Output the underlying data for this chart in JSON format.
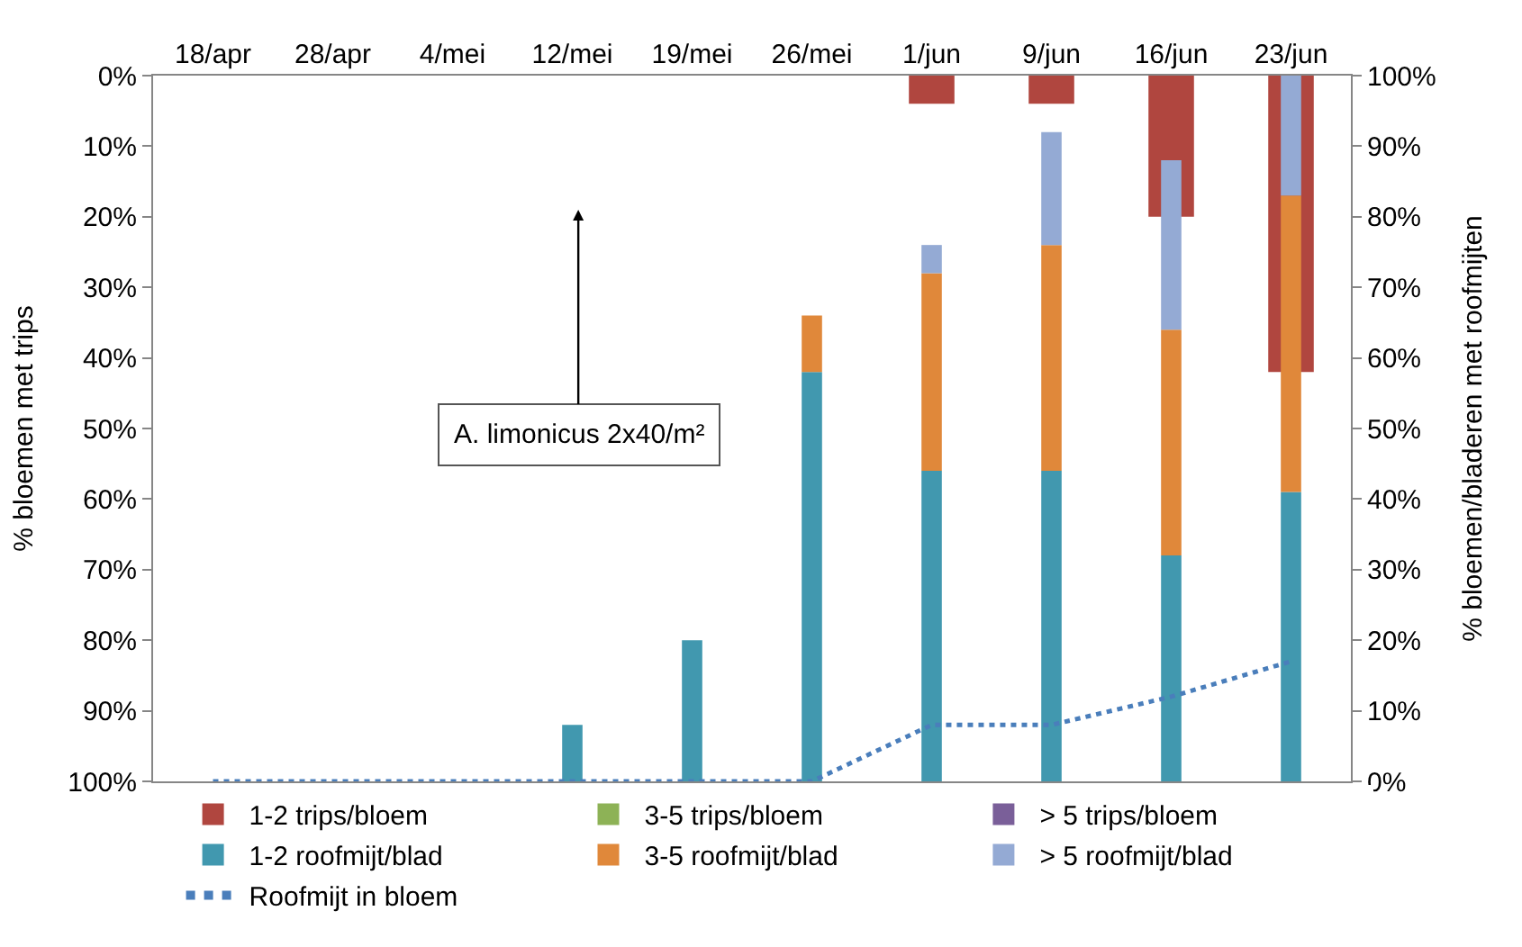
{
  "chart_data": {
    "type": "bar",
    "stacked": true,
    "ylabel": "% bloemen met trips",
    "y2label": "% bloemen/bladeren met roofmijten",
    "categories": [
      "18/apr",
      "28/apr",
      "4/mei",
      "12/mei",
      "19/mei",
      "26/mei",
      "1/jun",
      "9/jun",
      "16/jun",
      "23/jun"
    ],
    "series": [
      {
        "name": "1-2 trips/bloem",
        "color": "#b0463f",
        "axis": "y",
        "values": [
          null,
          null,
          null,
          null,
          null,
          null,
          4,
          4,
          20,
          42
        ]
      },
      {
        "name": "3-5 trips/bloem",
        "color": "#8db256",
        "axis": "y",
        "values": [
          null,
          null,
          null,
          null,
          null,
          null,
          null,
          null,
          null,
          null
        ]
      },
      {
        "name": "> 5 trips/bloem",
        "color": "#7a5f99",
        "axis": "y",
        "values": [
          null,
          null,
          null,
          null,
          null,
          null,
          null,
          null,
          null,
          null
        ]
      },
      {
        "name": "1-2 roofmijt/blad",
        "color": "#4198af",
        "axis": "y2",
        "values": [
          null,
          null,
          null,
          8,
          20,
          58,
          44,
          44,
          32,
          41
        ]
      },
      {
        "name": "3-5 roofmijt/blad",
        "color": "#e0883a",
        "axis": "y2",
        "values": [
          null,
          null,
          null,
          null,
          null,
          8,
          28,
          32,
          32,
          42
        ]
      },
      {
        "name": "> 5 roofmijt/blad",
        "color": "#94aad4",
        "axis": "y2",
        "values": [
          null,
          null,
          null,
          null,
          null,
          null,
          4,
          16,
          24,
          17
        ]
      },
      {
        "name": "Roofmijt in bloem",
        "color": "#4a7ebb",
        "axis": "y2",
        "type": "line",
        "line_style": "dotted",
        "marker": "none",
        "values": [
          0,
          0,
          0,
          0,
          0,
          0,
          8,
          8,
          12,
          17
        ]
      }
    ],
    "ylim": [
      100,
      0
    ],
    "yticks": [
      {
        "value": 0,
        "label": "0%"
      },
      {
        "value": 10,
        "label": "10%"
      },
      {
        "value": 20,
        "label": "20%"
      },
      {
        "value": 30,
        "label": "30%"
      },
      {
        "value": 40,
        "label": "40%"
      },
      {
        "value": 50,
        "label": "50%"
      },
      {
        "value": 60,
        "label": "60%"
      },
      {
        "value": 70,
        "label": "70%"
      },
      {
        "value": 80,
        "label": "80%"
      },
      {
        "value": 90,
        "label": "90%"
      },
      {
        "value": 100,
        "label": "100%"
      }
    ],
    "y2lim": [
      0,
      100
    ],
    "y2ticks": [
      {
        "value": 0,
        "label": "0%"
      },
      {
        "value": 10,
        "label": "10%"
      },
      {
        "value": 20,
        "label": "20%"
      },
      {
        "value": 30,
        "label": "30%"
      },
      {
        "value": 40,
        "label": "40%"
      },
      {
        "value": 50,
        "label": "50%"
      },
      {
        "value": 60,
        "label": "60%"
      },
      {
        "value": 70,
        "label": "70%"
      },
      {
        "value": 80,
        "label": "80%"
      },
      {
        "value": 90,
        "label": "90%"
      },
      {
        "value": 100,
        "label": "100%"
      }
    ],
    "annotations": [
      "A. limonicus 2x40/m²"
    ],
    "grid": false,
    "legend": "bottom"
  }
}
